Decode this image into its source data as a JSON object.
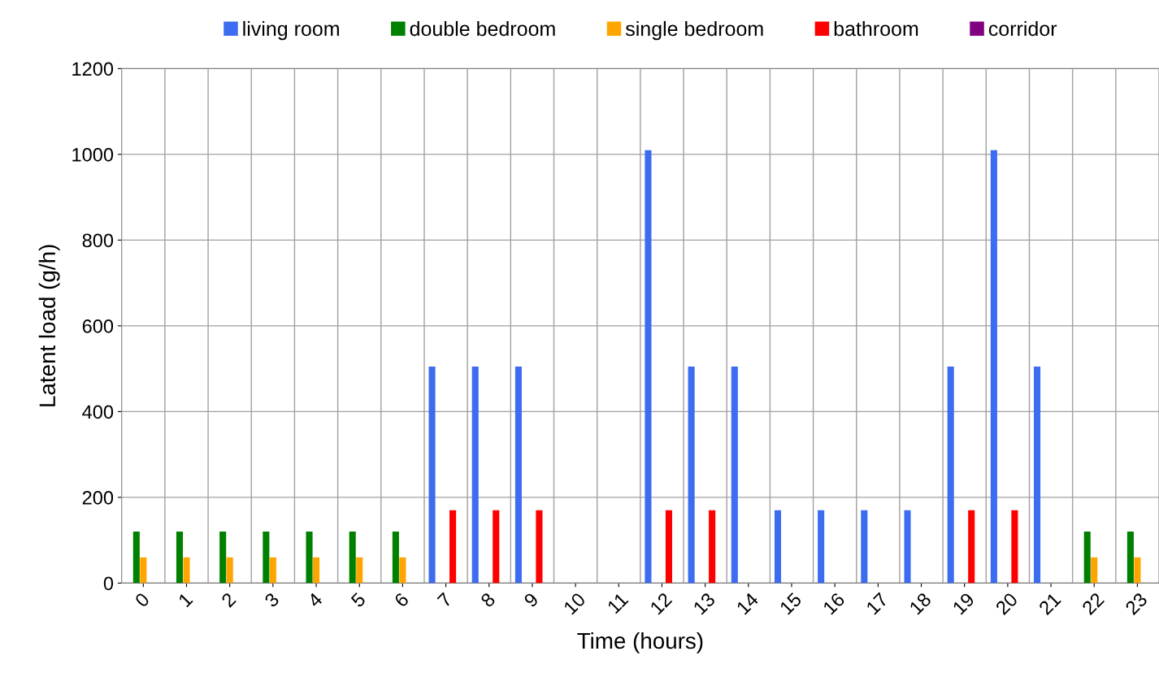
{
  "chart_data": {
    "type": "bar",
    "xlabel": "Time (hours)",
    "ylabel": "Latent load (g/h)",
    "categories": [
      "0",
      "1",
      "2",
      "3",
      "4",
      "5",
      "6",
      "7",
      "8",
      "9",
      "10",
      "11",
      "12",
      "13",
      "14",
      "15",
      "16",
      "17",
      "18",
      "19",
      "20",
      "21",
      "22",
      "23"
    ],
    "series": [
      {
        "name": "living room",
        "color": "#3c6cf0",
        "values": [
          0,
          0,
          0,
          0,
          0,
          0,
          0,
          505,
          505,
          505,
          0,
          0,
          1010,
          505,
          505,
          170,
          170,
          170,
          170,
          505,
          1010,
          505,
          0,
          0
        ]
      },
      {
        "name": "double bedroom",
        "color": "#008000",
        "values": [
          120,
          120,
          120,
          120,
          120,
          120,
          120,
          0,
          0,
          0,
          0,
          0,
          0,
          0,
          0,
          0,
          0,
          0,
          0,
          0,
          0,
          0,
          120,
          120
        ]
      },
      {
        "name": "single bedroom",
        "color": "#ffa500",
        "values": [
          60,
          60,
          60,
          60,
          60,
          60,
          60,
          0,
          0,
          0,
          0,
          0,
          0,
          0,
          0,
          0,
          0,
          0,
          0,
          0,
          0,
          0,
          60,
          60
        ]
      },
      {
        "name": "bathroom",
        "color": "#ff0000",
        "values": [
          0,
          0,
          0,
          0,
          0,
          0,
          0,
          170,
          170,
          170,
          0,
          0,
          170,
          170,
          0,
          0,
          0,
          0,
          0,
          170,
          170,
          0,
          0,
          0
        ]
      },
      {
        "name": "corridor",
        "color": "#800080",
        "values": [
          0,
          0,
          0,
          0,
          0,
          0,
          0,
          0,
          0,
          0,
          0,
          0,
          0,
          0,
          0,
          0,
          0,
          0,
          0,
          0,
          0,
          0,
          0,
          0
        ]
      }
    ],
    "ylim": [
      0,
      1200
    ],
    "yticks": [
      0,
      200,
      400,
      600,
      800,
      1000,
      1200
    ],
    "grid": true,
    "legend": "top"
  }
}
